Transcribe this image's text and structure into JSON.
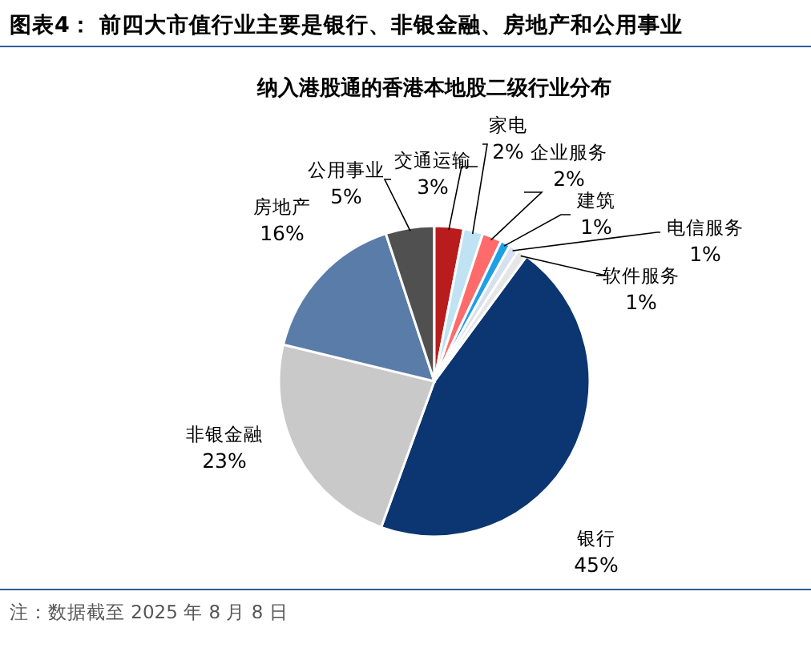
{
  "chart_data": {
    "type": "pie",
    "title": "图表4：  前四大市值行业主要是银行、非银金融、房地产和公用事业",
    "subtitle": "纳入港股通的香港本地股二级行业分布",
    "categories": [
      "银行",
      "非银金融",
      "房地产",
      "公用事业",
      "交通运输",
      "家电",
      "企业服务",
      "建筑",
      "电信服务",
      "软件服务"
    ],
    "values": [
      45,
      23,
      16,
      5,
      3,
      2,
      2,
      1,
      1,
      1
    ],
    "value_labels": [
      "45%",
      "23%",
      "16%",
      "5%",
      "3%",
      "2%",
      "2%",
      "1%",
      "1%",
      "1%"
    ],
    "colors": [
      "#0c3672",
      "#c9c9c9",
      "#5a7ca8",
      "#505050",
      "#b81c1c",
      "#bfe3f3",
      "#ff6b6b",
      "#1ea0e6",
      "#d6e0ee",
      "#e6e6e6"
    ],
    "annotations": [
      "注：数据截至 2025 年 8 月 8 日"
    ]
  }
}
